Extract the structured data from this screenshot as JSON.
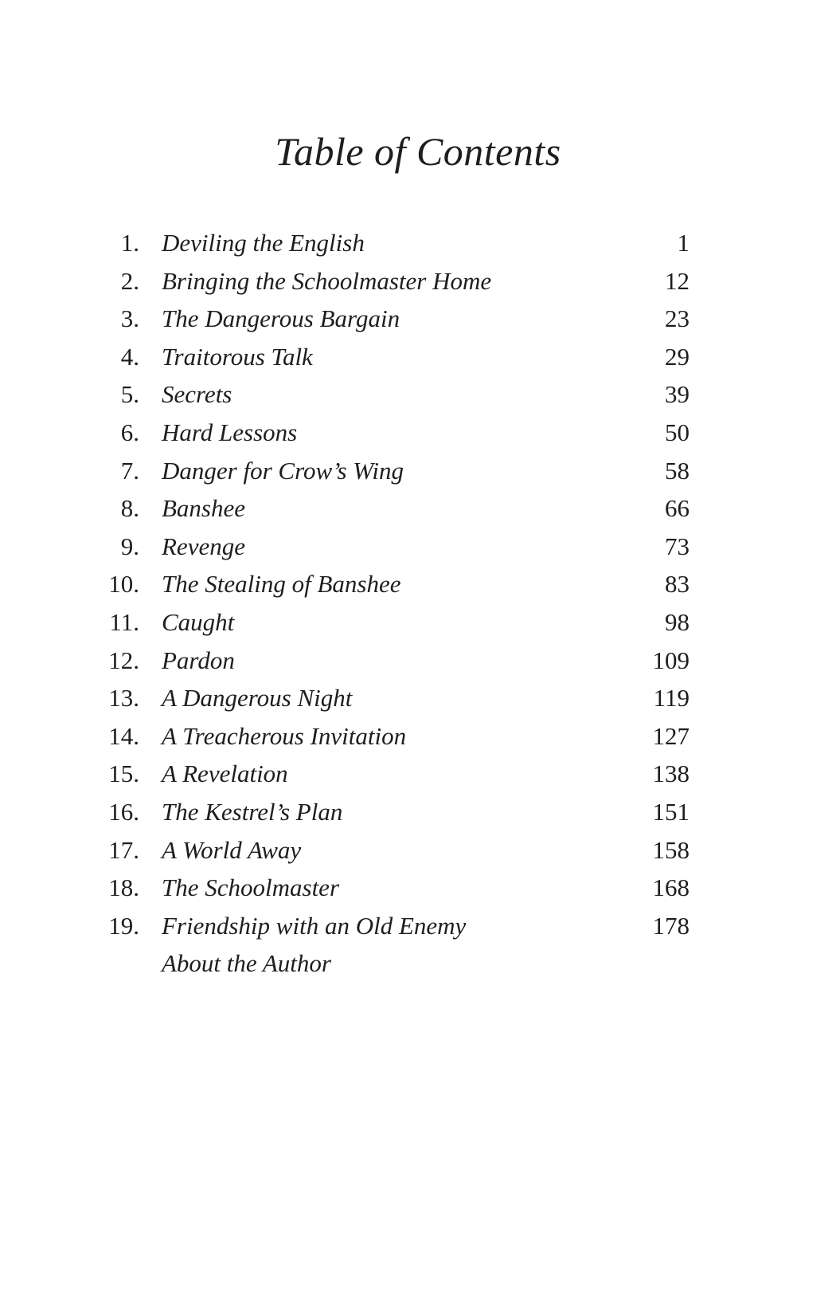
{
  "title": "Table of Contents",
  "entries": [
    {
      "number": "1.",
      "title": "Deviling the English",
      "page": "1"
    },
    {
      "number": "2.",
      "title": "Bringing the Schoolmaster Home",
      "page": "12"
    },
    {
      "number": "3.",
      "title": "The Dangerous Bargain",
      "page": "23"
    },
    {
      "number": "4.",
      "title": "Traitorous Talk",
      "page": "29"
    },
    {
      "number": "5.",
      "title": "Secrets",
      "page": "39"
    },
    {
      "number": "6.",
      "title": "Hard Lessons",
      "page": "50"
    },
    {
      "number": "7.",
      "title": "Danger for Crow’s Wing",
      "page": "58"
    },
    {
      "number": "8.",
      "title": "Banshee",
      "page": "66"
    },
    {
      "number": "9.",
      "title": "Revenge",
      "page": "73"
    },
    {
      "number": "10.",
      "title": "The Stealing of Banshee",
      "page": "83"
    },
    {
      "number": "11.",
      "title": "Caught",
      "page": "98"
    },
    {
      "number": "12.",
      "title": "Pardon",
      "page": "109"
    },
    {
      "number": "13.",
      "title": "A Dangerous Night",
      "page": "119"
    },
    {
      "number": "14.",
      "title": "A Treacherous Invitation",
      "page": "127"
    },
    {
      "number": "15.",
      "title": "A Revelation",
      "page": "138"
    },
    {
      "number": "16.",
      "title": "The Kestrel’s Plan",
      "page": "151"
    },
    {
      "number": "17.",
      "title": "A World Away",
      "page": "158"
    },
    {
      "number": "18.",
      "title": "The Schoolmaster",
      "page": "168"
    },
    {
      "number": "19.",
      "title": "Friendship with an Old Enemy",
      "page": "178"
    },
    {
      "number": "",
      "title": "About the Author",
      "page": ""
    }
  ]
}
